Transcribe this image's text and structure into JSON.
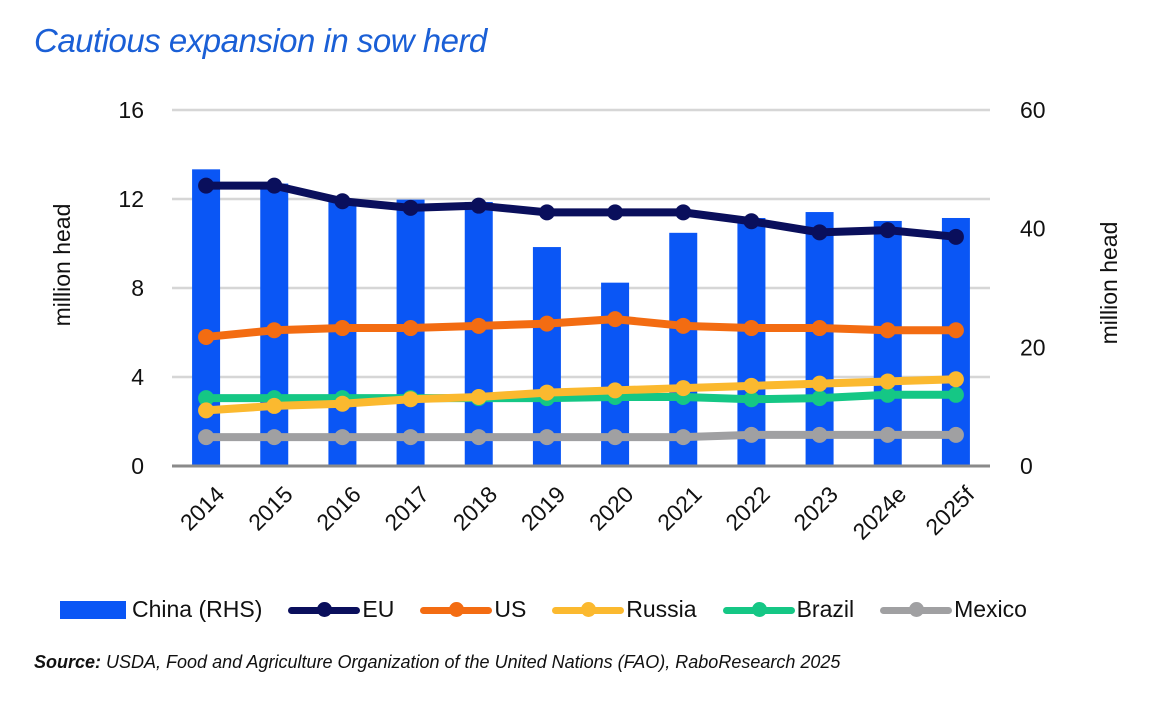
{
  "chart_data": {
    "type": "bar+line",
    "title": "Cautious expansion in sow herd",
    "categories": [
      "2014",
      "2015",
      "2016",
      "2017",
      "2018",
      "2019",
      "2020",
      "2021",
      "2022",
      "2023",
      "2024e",
      "2025f"
    ],
    "ylabel_left": "million head",
    "ylabel_right": "million head",
    "ylim_left": [
      0,
      16
    ],
    "ylim_right": [
      0,
      60
    ],
    "yticks_left": [
      "0",
      "4",
      "8",
      "12",
      "16"
    ],
    "yticks_right": [
      "0",
      "20",
      "40",
      "60"
    ],
    "grid": true,
    "legend_position": "bottom",
    "bar_series": {
      "name": "China (RHS)",
      "axis": "right",
      "color": "#0a56f5",
      "values": [
        50.0,
        47.6,
        45.0,
        44.9,
        44.5,
        36.9,
        30.9,
        39.3,
        41.8,
        42.8,
        41.3,
        41.8
      ]
    },
    "series": [
      {
        "name": "EU",
        "color": "#0a0f5c",
        "axis": "left",
        "values": [
          12.6,
          12.6,
          11.9,
          11.6,
          11.7,
          11.4,
          11.4,
          11.4,
          11.0,
          10.5,
          10.6,
          10.3
        ]
      },
      {
        "name": "US",
        "color": "#f36c12",
        "axis": "left",
        "values": [
          5.8,
          6.1,
          6.2,
          6.2,
          6.3,
          6.4,
          6.6,
          6.3,
          6.2,
          6.2,
          6.1,
          6.1
        ]
      },
      {
        "name": "Russia",
        "color": "#fbb92f",
        "axis": "left",
        "values": [
          2.5,
          2.7,
          2.8,
          3.0,
          3.1,
          3.3,
          3.4,
          3.5,
          3.6,
          3.7,
          3.8,
          3.9
        ]
      },
      {
        "name": "Brazil",
        "color": "#15c785",
        "axis": "left",
        "values": [
          3.05,
          3.05,
          3.05,
          3.05,
          3.05,
          3.05,
          3.1,
          3.1,
          3.0,
          3.05,
          3.2,
          3.2
        ]
      },
      {
        "name": "Mexico",
        "color": "#a0a0a2",
        "axis": "left",
        "values": [
          1.3,
          1.3,
          1.3,
          1.3,
          1.3,
          1.3,
          1.3,
          1.3,
          1.4,
          1.4,
          1.4,
          1.4
        ]
      }
    ]
  },
  "source": {
    "label": "Source:",
    "text": " USDA, Food and Agriculture Organization of the United Nations (FAO), RaboResearch 2025"
  }
}
